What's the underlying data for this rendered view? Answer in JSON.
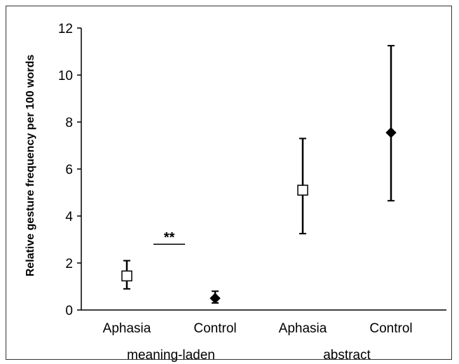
{
  "chart_data": {
    "type": "scatter",
    "ylabel": "Relative gesture frequency per 100 words",
    "xlabel": "",
    "ylim": [
      0,
      12
    ],
    "yticks": [
      "0",
      "2",
      "4",
      "6",
      "8",
      "10",
      "12"
    ],
    "categories": [
      "Aphasia",
      "Control",
      "Aphasia",
      "Control"
    ],
    "groups": [
      "meaning-laden",
      "abstract"
    ],
    "series": [
      {
        "name": "Aphasia",
        "marker": "open-square",
        "points": [
          {
            "category": "Aphasia",
            "group": "meaning-laden",
            "value": 1.45,
            "err_low": 0.9,
            "err_high": 2.1
          },
          {
            "category": "Aphasia",
            "group": "abstract",
            "value": 5.1,
            "err_low": 3.25,
            "err_high": 7.3
          }
        ]
      },
      {
        "name": "Control",
        "marker": "filled-diamond",
        "points": [
          {
            "category": "Control",
            "group": "meaning-laden",
            "value": 0.5,
            "err_low": 0.3,
            "err_high": 0.8
          },
          {
            "category": "Control",
            "group": "abstract",
            "value": 7.55,
            "err_low": 4.65,
            "err_high": 11.25
          }
        ]
      }
    ],
    "annotations": [
      {
        "text": "**",
        "y": 2.8,
        "between": [
          "Aphasia",
          "Control"
        ],
        "group": "meaning-laden"
      }
    ],
    "grid": false,
    "colors": {
      "axis": "#000000",
      "marker_fill": "#000000",
      "open_marker_fill": "#ffffff"
    }
  }
}
